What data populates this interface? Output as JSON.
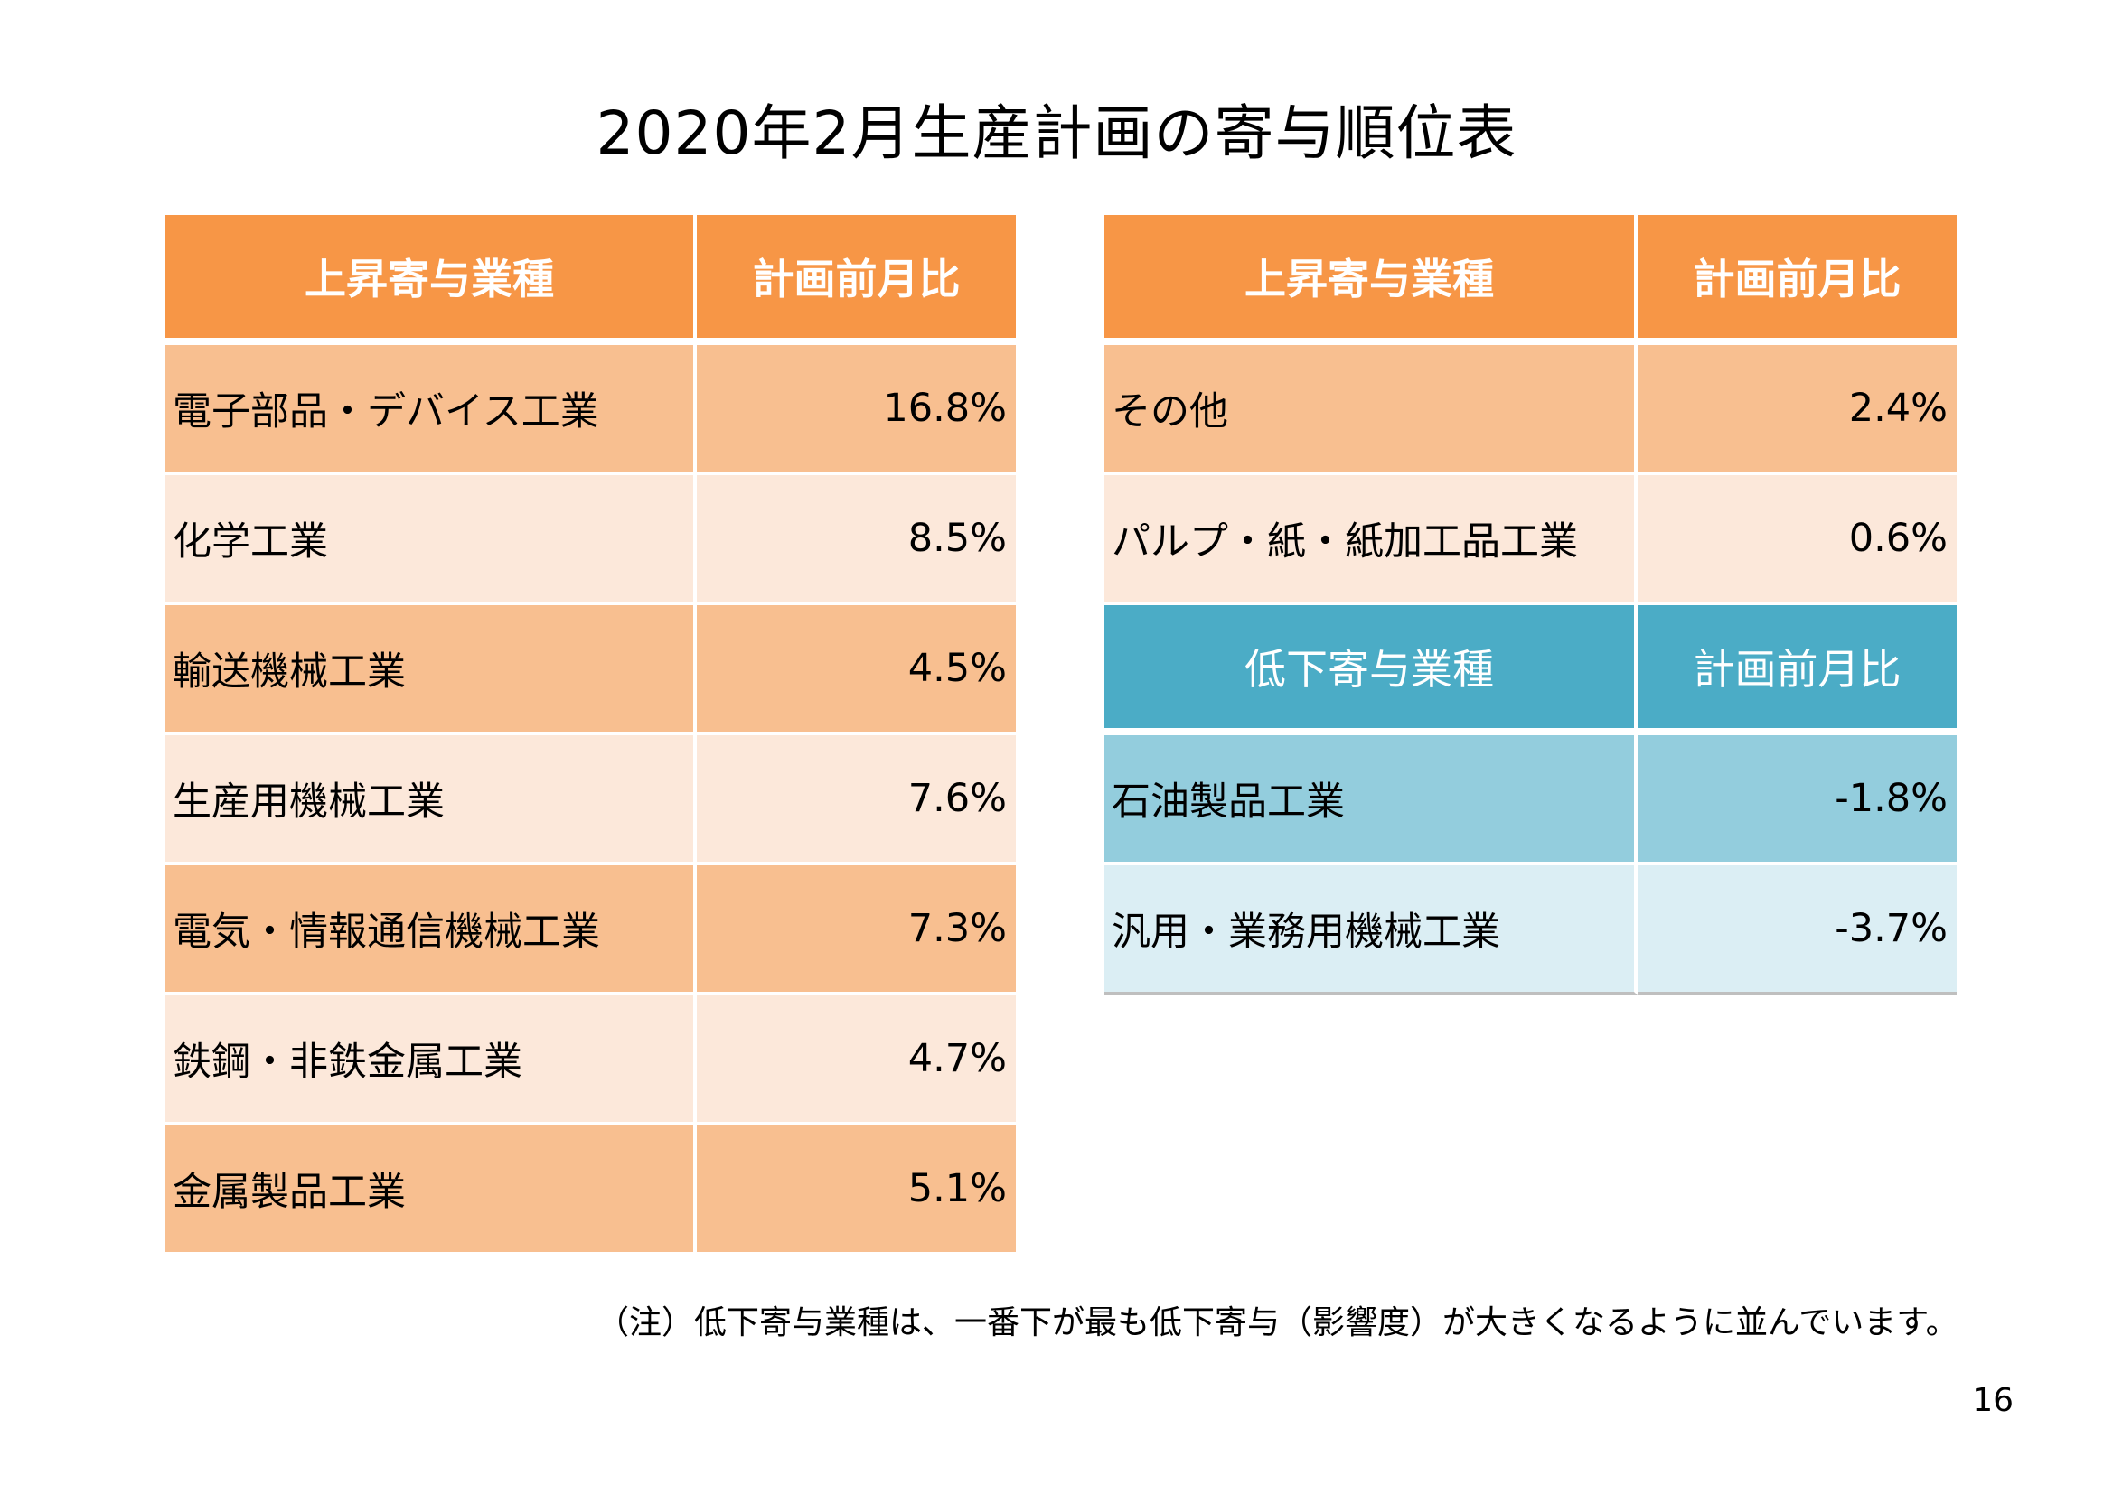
{
  "title": "2020年2月生産計画の寄与順位表",
  "left_table": {
    "header": {
      "industry": "上昇寄与業種",
      "change": "計画前月比"
    },
    "rows": [
      {
        "industry": "電子部品・デバイス工業",
        "change": "16.8%"
      },
      {
        "industry": "化学工業",
        "change": "8.5%"
      },
      {
        "industry": "輸送機械工業",
        "change": "4.5%"
      },
      {
        "industry": "生産用機械工業",
        "change": "7.6%"
      },
      {
        "industry": "電気・情報通信機械工業",
        "change": "7.3%"
      },
      {
        "industry": "鉄鋼・非鉄金属工業",
        "change": "4.7%"
      },
      {
        "industry": "金属製品工業",
        "change": "5.1%"
      }
    ]
  },
  "right_table": {
    "rise_header": {
      "industry": "上昇寄与業種",
      "change": "計画前月比"
    },
    "rise_rows": [
      {
        "industry": "その他",
        "change": "2.4%"
      },
      {
        "industry": "パルプ・紙・紙加工品工業",
        "change": "0.6%"
      }
    ],
    "fall_header": {
      "industry": "低下寄与業種",
      "change": "計画前月比"
    },
    "fall_rows": [
      {
        "industry": "石油製品工業",
        "change": "-1.8%"
      },
      {
        "industry": "汎用・業務用機械工業",
        "change": "-3.7%"
      }
    ]
  },
  "note": "（注）低下寄与業種は、一番下が最も低下寄与（影響度）が大きくなるように並んでいます。",
  "page_number": "16",
  "colors": {
    "orange_header": "#f79646",
    "orange_dark": "#f8bf90",
    "orange_light": "#fce8da",
    "blue_header": "#4bacc6",
    "blue_dark": "#93cddd",
    "blue_light": "#dbeef4"
  }
}
